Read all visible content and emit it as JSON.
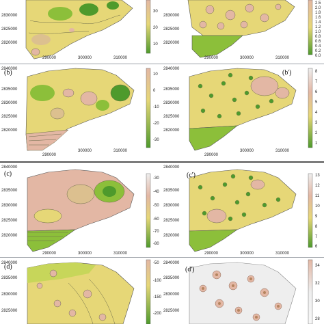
{
  "colors": {
    "green_dark": "#4e9a2c",
    "green": "#8cbf3a",
    "yellow_green": "#c7d65a",
    "yellow": "#e6d777",
    "beige": "#dcc08f",
    "pink": "#e3b7a4",
    "lightgray": "#eeeeee",
    "contour": "#6b6b4a"
  },
  "panels": [
    {
      "id": "a",
      "label": "",
      "y_ticks": [
        "2830000",
        "2825000",
        "2820000"
      ],
      "x_ticks": [
        "290000",
        "300000",
        "310000"
      ],
      "colorbar_ticks": [
        "30",
        "20",
        "10"
      ]
    },
    {
      "id": "a_prime",
      "label": "",
      "y_ticks": [
        "2830000",
        "2825000",
        "2820000"
      ],
      "x_ticks": [
        "290000",
        "300000",
        "310000"
      ],
      "colorbar_ticks": [
        "2.5",
        "2.0",
        "1.8",
        "1.6",
        "1.4",
        "1.2",
        "1.0",
        "0.8",
        "0.6",
        "0.4",
        "0.2",
        "0.0"
      ]
    },
    {
      "id": "b",
      "label": "(b)",
      "y_ticks": [
        "2840000",
        "2835000",
        "2830000",
        "2825000",
        "2820000"
      ],
      "x_ticks": [
        "290000",
        "300000",
        "310000"
      ],
      "colorbar_ticks": [
        "10",
        "0",
        "-10",
        "-20",
        "-30"
      ]
    },
    {
      "id": "b_prime",
      "label": "(b')",
      "y_ticks": [
        "2840000",
        "2835000",
        "2830000",
        "2825000",
        "2820000"
      ],
      "x_ticks": [
        "290000",
        "300000",
        "310000"
      ],
      "colorbar_ticks": [
        "8",
        "7",
        "6",
        "5",
        "4",
        "3",
        "2",
        "1"
      ]
    },
    {
      "id": "c",
      "label": "(c)",
      "y_ticks": [
        "2840000",
        "2835000",
        "2830000",
        "2825000",
        "2820000"
      ],
      "x_ticks": [
        "290000",
        "300000",
        "310000"
      ],
      "colorbar_ticks": [
        "-30",
        "-40",
        "-50",
        "-60",
        "-70",
        "-80"
      ]
    },
    {
      "id": "c_prime",
      "label": "(c')",
      "y_ticks": [
        "2840000",
        "2835000",
        "2830000",
        "2825000",
        "2820000"
      ],
      "x_ticks": [
        "290000",
        "300000",
        "310000"
      ],
      "colorbar_ticks": [
        "13",
        "12",
        "11",
        "10",
        "9",
        "8",
        "7",
        "6"
      ]
    },
    {
      "id": "d",
      "label": "(d)",
      "y_ticks": [
        "2840000",
        "2835000",
        "2830000",
        "2825000"
      ],
      "x_ticks": [],
      "colorbar_ticks": [
        "-50",
        "-100",
        "-150",
        "-200"
      ]
    },
    {
      "id": "d_prime",
      "label": "(d')",
      "y_ticks": [
        "2840000",
        "2835000",
        "2830000",
        "2825000"
      ],
      "x_ticks": [],
      "colorbar_ticks": [
        "34",
        "32",
        "30",
        "28"
      ]
    }
  ]
}
